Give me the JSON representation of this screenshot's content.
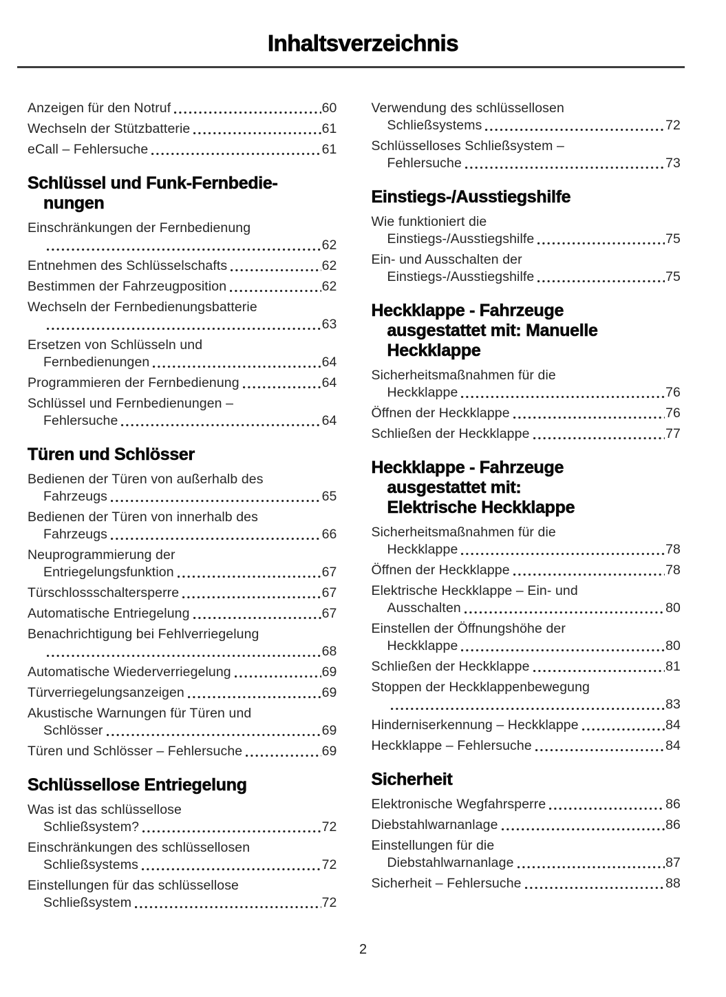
{
  "page": {
    "title": "Inhaltsverzeichnis",
    "page_number": "2"
  },
  "columns": [
    {
      "blocks": [
        {
          "type": "entries",
          "items": [
            {
              "lines": [
                "Anzeigen für den Notruf"
              ],
              "page": "60"
            },
            {
              "lines": [
                "Wechseln der Stützbatterie"
              ],
              "page": "61"
            },
            {
              "lines": [
                "eCall – Fehlersuche"
              ],
              "page": "61"
            }
          ]
        },
        {
          "type": "heading",
          "lines": [
            "Schlüssel und Funk-Fernbedie-",
            "nungen"
          ]
        },
        {
          "type": "entries",
          "items": [
            {
              "lines": [
                "Einschränkungen der Fernbedienung",
                ""
              ],
              "page": "62"
            },
            {
              "lines": [
                "Entnehmen des Schlüsselschafts"
              ],
              "page": "62"
            },
            {
              "lines": [
                "Bestimmen der Fahrzeugposition"
              ],
              "page": "62"
            },
            {
              "lines": [
                "Wechseln der Fernbedienungsbatterie",
                ""
              ],
              "page": "63"
            },
            {
              "lines": [
                "Ersetzen von Schlüsseln und",
                "Fernbedienungen"
              ],
              "page": "64"
            },
            {
              "lines": [
                "Programmieren der Fernbedienung"
              ],
              "page": "64"
            },
            {
              "lines": [
                "Schlüssel und Fernbedienungen –",
                "Fehlersuche"
              ],
              "page": "64"
            }
          ]
        },
        {
          "type": "heading",
          "lines": [
            "Türen und Schlösser"
          ]
        },
        {
          "type": "entries",
          "items": [
            {
              "lines": [
                "Bedienen der Türen von außerhalb des",
                "Fahrzeugs"
              ],
              "page": "65"
            },
            {
              "lines": [
                "Bedienen der Türen von innerhalb des",
                "Fahrzeugs"
              ],
              "page": "66"
            },
            {
              "lines": [
                "Neuprogrammierung der",
                "Entriegelungsfunktion"
              ],
              "page": "67"
            },
            {
              "lines": [
                "Türschlossschaltersperre"
              ],
              "page": "67"
            },
            {
              "lines": [
                "Automatische Entriegelung"
              ],
              "page": "67"
            },
            {
              "lines": [
                "Benachrichtigung bei Fehlverriegelung",
                ""
              ],
              "page": "68"
            },
            {
              "lines": [
                "Automatische Wiederverriegelung"
              ],
              "page": "69"
            },
            {
              "lines": [
                "Türverriegelungsanzeigen"
              ],
              "page": "69"
            },
            {
              "lines": [
                "Akustische Warnungen für Türen und",
                "Schlösser"
              ],
              "page": "69"
            },
            {
              "lines": [
                "Türen und Schlösser – Fehlersuche"
              ],
              "page": "69"
            }
          ]
        },
        {
          "type": "heading",
          "lines": [
            "Schlüssellose Entriegelung"
          ]
        },
        {
          "type": "entries",
          "items": [
            {
              "lines": [
                "Was ist das schlüssellose",
                "Schließsystem?"
              ],
              "page": "72"
            },
            {
              "lines": [
                "Einschränkungen des schlüssellosen",
                "Schließsystems"
              ],
              "page": "72"
            },
            {
              "lines": [
                "Einstellungen für das schlüssellose",
                "Schließsystem"
              ],
              "page": "72"
            }
          ]
        }
      ]
    },
    {
      "blocks": [
        {
          "type": "entries",
          "items": [
            {
              "lines": [
                "Verwendung des schlüssellosen",
                "Schließsystems"
              ],
              "page": "72"
            },
            {
              "lines": [
                "Schlüsselloses Schließsystem –",
                "Fehlersuche"
              ],
              "page": "73"
            }
          ]
        },
        {
          "type": "heading",
          "lines": [
            "Einstiegs-/Ausstiegshilfe"
          ]
        },
        {
          "type": "entries",
          "items": [
            {
              "lines": [
                "Wie funktioniert die",
                "Einstiegs-/Ausstiegshilfe"
              ],
              "page": "75"
            },
            {
              "lines": [
                "Ein- und Ausschalten der",
                "Einstiegs-/Ausstiegshilfe"
              ],
              "page": "75"
            }
          ]
        },
        {
          "type": "heading",
          "lines": [
            "Heckklappe - Fahrzeuge",
            "ausgestattet mit: Manuelle",
            "Heckklappe"
          ]
        },
        {
          "type": "entries",
          "items": [
            {
              "lines": [
                "Sicherheitsmaßnahmen für die",
                "Heckklappe"
              ],
              "page": "76"
            },
            {
              "lines": [
                "Öffnen der Heckklappe"
              ],
              "page": "76"
            },
            {
              "lines": [
                "Schließen der Heckklappe"
              ],
              "page": "77"
            }
          ]
        },
        {
          "type": "heading",
          "lines": [
            "Heckklappe - Fahrzeuge",
            "ausgestattet mit:",
            "Elektrische Heckklappe"
          ]
        },
        {
          "type": "entries",
          "items": [
            {
              "lines": [
                "Sicherheitsmaßnahmen für die",
                "Heckklappe"
              ],
              "page": "78"
            },
            {
              "lines": [
                "Öffnen der Heckklappe"
              ],
              "page": "78"
            },
            {
              "lines": [
                "Elektrische Heckklappe – Ein- und",
                "Ausschalten"
              ],
              "page": "80"
            },
            {
              "lines": [
                "Einstellen der Öffnungshöhe der",
                "Heckklappe"
              ],
              "page": "80"
            },
            {
              "lines": [
                "Schließen der Heckklappe"
              ],
              "page": "81"
            },
            {
              "lines": [
                "Stoppen der Heckklappenbewegung",
                ""
              ],
              "page": "83"
            },
            {
              "lines": [
                "Hinderniserkennung – Heckklappe"
              ],
              "page": "84"
            },
            {
              "lines": [
                "Heckklappe – Fehlersuche"
              ],
              "page": "84"
            }
          ]
        },
        {
          "type": "heading",
          "lines": [
            "Sicherheit"
          ]
        },
        {
          "type": "entries",
          "items": [
            {
              "lines": [
                "Elektronische Wegfahrsperre"
              ],
              "page": "86"
            },
            {
              "lines": [
                "Diebstahlwarnanlage"
              ],
              "page": "86"
            },
            {
              "lines": [
                "Einstellungen für die",
                "Diebstahlwarnanlage"
              ],
              "page": "87"
            },
            {
              "lines": [
                "Sicherheit – Fehlersuche"
              ],
              "page": "88"
            }
          ]
        }
      ]
    }
  ]
}
